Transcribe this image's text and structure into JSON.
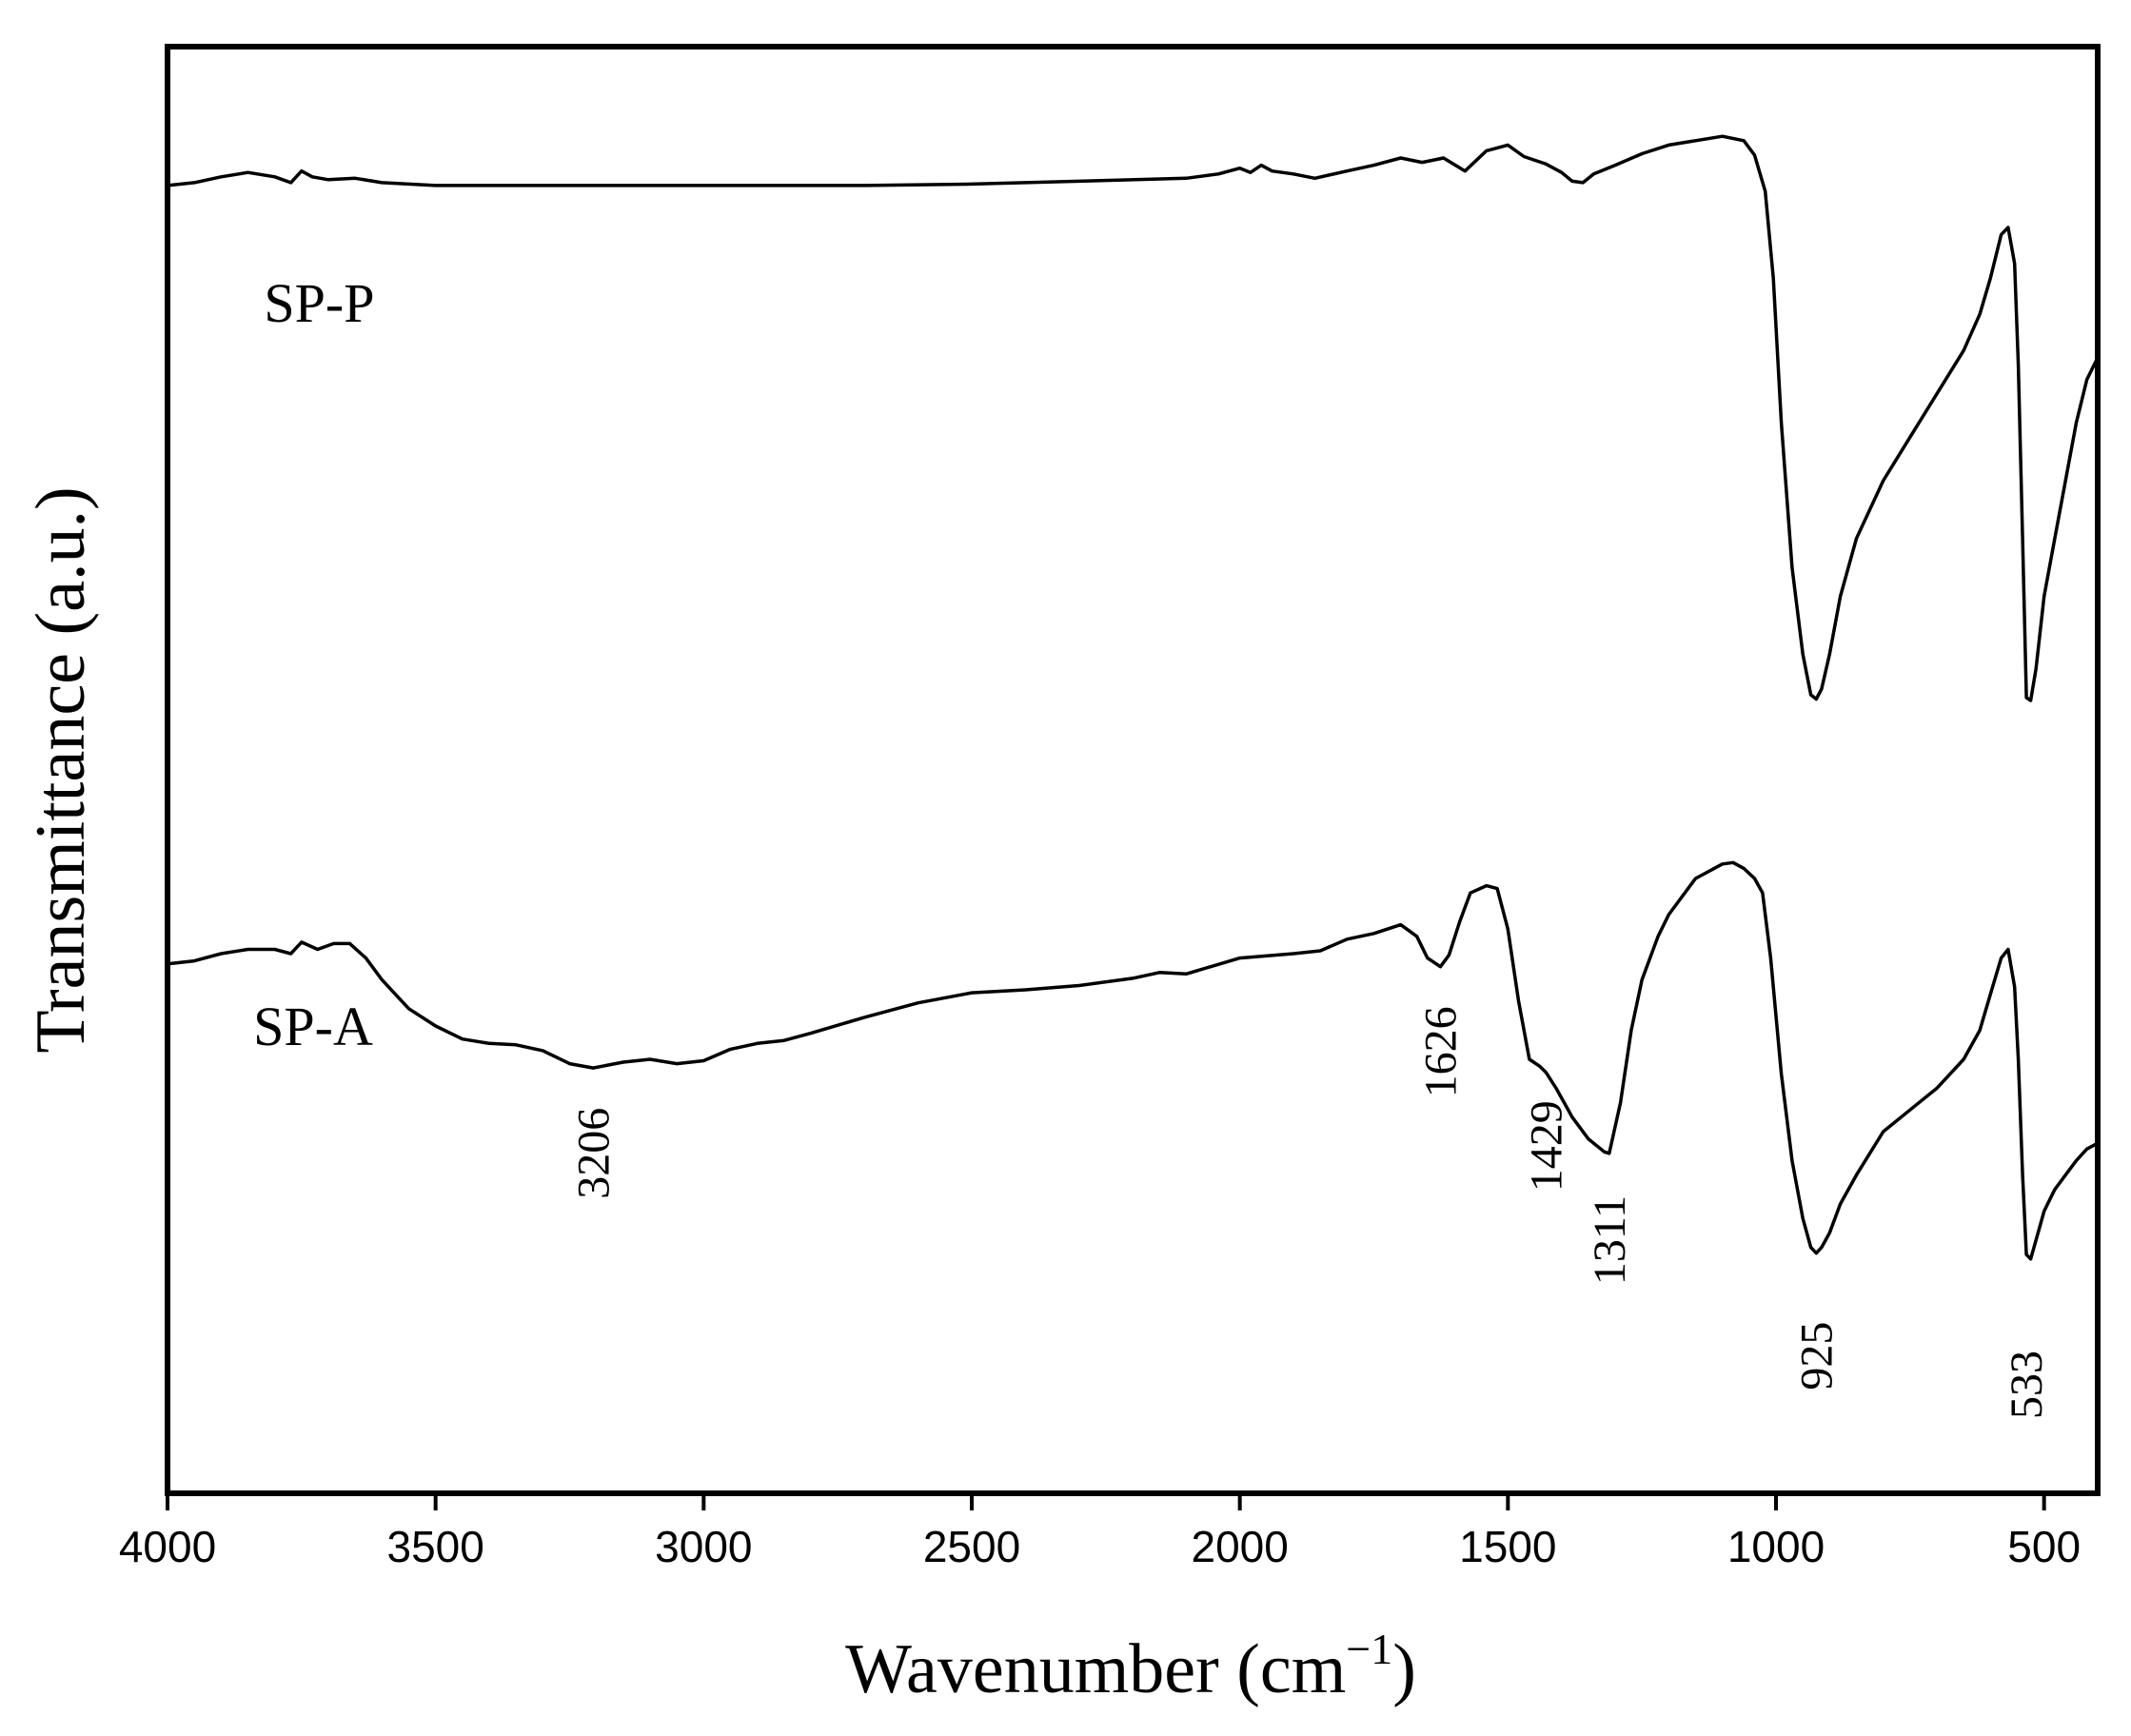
{
  "chart_data": {
    "type": "line",
    "xlabel_main": "Wavenumber (cm",
    "xlabel_sup": "−1",
    "xlabel_close": ")",
    "ylabel": "Transmittance (a.u.)",
    "xlim": [
      4000,
      400
    ],
    "ylim": [
      0,
      100
    ],
    "x_ticks": [
      {
        "value": 4000,
        "label": "4000"
      },
      {
        "value": 3500,
        "label": "3500"
      },
      {
        "value": 3000,
        "label": "3000"
      },
      {
        "value": 2500,
        "label": "2500"
      },
      {
        "value": 2000,
        "label": "2000"
      },
      {
        "value": 1500,
        "label": "1500"
      },
      {
        "value": 1000,
        "label": "1000"
      },
      {
        "value": 500,
        "label": "500"
      }
    ],
    "series": [
      {
        "name": "SP-P",
        "label_pos": {
          "x": 3820,
          "y": 81
        },
        "points": [
          [
            4000,
            90.4
          ],
          [
            3950,
            90.6
          ],
          [
            3900,
            91.0
          ],
          [
            3850,
            91.3
          ],
          [
            3800,
            91.0
          ],
          [
            3770,
            90.6
          ],
          [
            3750,
            91.4
          ],
          [
            3730,
            91.0
          ],
          [
            3700,
            90.8
          ],
          [
            3650,
            90.9
          ],
          [
            3600,
            90.6
          ],
          [
            3500,
            90.4
          ],
          [
            3300,
            90.4
          ],
          [
            3000,
            90.4
          ],
          [
            2700,
            90.4
          ],
          [
            2500,
            90.5
          ],
          [
            2300,
            90.7
          ],
          [
            2100,
            90.9
          ],
          [
            2040,
            91.2
          ],
          [
            2000,
            91.6
          ],
          [
            1980,
            91.3
          ],
          [
            1960,
            91.8
          ],
          [
            1940,
            91.4
          ],
          [
            1900,
            91.2
          ],
          [
            1860,
            90.9
          ],
          [
            1800,
            91.4
          ],
          [
            1750,
            91.8
          ],
          [
            1700,
            92.3
          ],
          [
            1660,
            92.0
          ],
          [
            1620,
            92.3
          ],
          [
            1580,
            91.4
          ],
          [
            1540,
            92.8
          ],
          [
            1500,
            93.2
          ],
          [
            1470,
            92.4
          ],
          [
            1430,
            91.9
          ],
          [
            1400,
            91.3
          ],
          [
            1380,
            90.7
          ],
          [
            1360,
            90.6
          ],
          [
            1340,
            91.2
          ],
          [
            1300,
            91.8
          ],
          [
            1250,
            92.6
          ],
          [
            1200,
            93.2
          ],
          [
            1150,
            93.5
          ],
          [
            1100,
            93.8
          ],
          [
            1060,
            93.5
          ],
          [
            1040,
            92.5
          ],
          [
            1020,
            90.0
          ],
          [
            1005,
            84.0
          ],
          [
            990,
            74.0
          ],
          [
            970,
            64.0
          ],
          [
            950,
            58.0
          ],
          [
            935,
            55.2
          ],
          [
            925,
            54.9
          ],
          [
            915,
            55.6
          ],
          [
            900,
            58.0
          ],
          [
            880,
            62.0
          ],
          [
            850,
            66.0
          ],
          [
            800,
            70.0
          ],
          [
            750,
            73.0
          ],
          [
            700,
            76.0
          ],
          [
            650,
            79.0
          ],
          [
            620,
            81.5
          ],
          [
            600,
            84.0
          ],
          [
            580,
            87.0
          ],
          [
            567,
            87.5
          ],
          [
            555,
            85.0
          ],
          [
            548,
            78.0
          ],
          [
            540,
            66.0
          ],
          [
            533,
            55.0
          ],
          [
            525,
            54.8
          ],
          [
            515,
            57.0
          ],
          [
            500,
            62.0
          ],
          [
            480,
            66.0
          ],
          [
            460,
            70.0
          ],
          [
            440,
            74.0
          ],
          [
            420,
            77.0
          ],
          [
            400,
            78.5
          ]
        ]
      },
      {
        "name": "SP-A",
        "label_pos": {
          "x": 3840,
          "y": 31
        },
        "points": [
          [
            4000,
            36.6
          ],
          [
            3950,
            36.8
          ],
          [
            3900,
            37.3
          ],
          [
            3850,
            37.6
          ],
          [
            3800,
            37.6
          ],
          [
            3770,
            37.3
          ],
          [
            3750,
            38.1
          ],
          [
            3720,
            37.6
          ],
          [
            3690,
            38.0
          ],
          [
            3660,
            38.0
          ],
          [
            3630,
            37.0
          ],
          [
            3600,
            35.5
          ],
          [
            3550,
            33.5
          ],
          [
            3500,
            32.3
          ],
          [
            3450,
            31.4
          ],
          [
            3400,
            31.1
          ],
          [
            3350,
            31.0
          ],
          [
            3300,
            30.6
          ],
          [
            3250,
            29.7
          ],
          [
            3206,
            29.4
          ],
          [
            3150,
            29.8
          ],
          [
            3100,
            30.0
          ],
          [
            3050,
            29.7
          ],
          [
            3000,
            29.9
          ],
          [
            2950,
            30.7
          ],
          [
            2900,
            31.1
          ],
          [
            2850,
            31.3
          ],
          [
            2800,
            31.8
          ],
          [
            2700,
            32.9
          ],
          [
            2600,
            33.9
          ],
          [
            2500,
            34.6
          ],
          [
            2400,
            34.8
          ],
          [
            2300,
            35.1
          ],
          [
            2200,
            35.6
          ],
          [
            2150,
            36.0
          ],
          [
            2100,
            35.9
          ],
          [
            2000,
            37.0
          ],
          [
            1900,
            37.3
          ],
          [
            1850,
            37.5
          ],
          [
            1800,
            38.3
          ],
          [
            1750,
            38.7
          ],
          [
            1700,
            39.3
          ],
          [
            1670,
            38.5
          ],
          [
            1650,
            37.0
          ],
          [
            1626,
            36.4
          ],
          [
            1610,
            37.2
          ],
          [
            1590,
            39.5
          ],
          [
            1570,
            41.5
          ],
          [
            1540,
            42.0
          ],
          [
            1520,
            41.8
          ],
          [
            1500,
            39.0
          ],
          [
            1480,
            34.0
          ],
          [
            1460,
            30.0
          ],
          [
            1440,
            29.5
          ],
          [
            1429,
            29.1
          ],
          [
            1410,
            28.0
          ],
          [
            1380,
            26.0
          ],
          [
            1350,
            24.5
          ],
          [
            1320,
            23.6
          ],
          [
            1311,
            23.5
          ],
          [
            1290,
            27.0
          ],
          [
            1270,
            32.0
          ],
          [
            1250,
            35.5
          ],
          [
            1220,
            38.5
          ],
          [
            1200,
            40.0
          ],
          [
            1150,
            42.5
          ],
          [
            1100,
            43.5
          ],
          [
            1080,
            43.6
          ],
          [
            1060,
            43.2
          ],
          [
            1040,
            42.5
          ],
          [
            1025,
            41.5
          ],
          [
            1010,
            37.0
          ],
          [
            990,
            29.0
          ],
          [
            970,
            23.0
          ],
          [
            950,
            19.0
          ],
          [
            935,
            17.0
          ],
          [
            925,
            16.6
          ],
          [
            915,
            17.0
          ],
          [
            900,
            18.0
          ],
          [
            880,
            20.0
          ],
          [
            850,
            22.0
          ],
          [
            800,
            25.0
          ],
          [
            750,
            26.5
          ],
          [
            700,
            28.0
          ],
          [
            650,
            30.0
          ],
          [
            620,
            32.0
          ],
          [
            600,
            34.5
          ],
          [
            580,
            37.0
          ],
          [
            567,
            37.6
          ],
          [
            555,
            35.0
          ],
          [
            548,
            30.0
          ],
          [
            540,
            22.0
          ],
          [
            533,
            16.5
          ],
          [
            525,
            16.2
          ],
          [
            515,
            17.5
          ],
          [
            500,
            19.5
          ],
          [
            480,
            21.0
          ],
          [
            460,
            22.0
          ],
          [
            440,
            23.0
          ],
          [
            420,
            23.8
          ],
          [
            400,
            24.2
          ]
        ]
      }
    ],
    "annotations": [
      {
        "text": "3206",
        "x": 3206,
        "y": 23.5
      },
      {
        "text": "1626",
        "x": 1626,
        "y": 30.5
      },
      {
        "text": "1429",
        "x": 1429,
        "y": 24.0
      },
      {
        "text": "1311",
        "x": 1311,
        "y": 17.5
      },
      {
        "text": "925",
        "x": 925,
        "y": 9.5
      },
      {
        "text": "533",
        "x": 533,
        "y": 7.5
      }
    ]
  }
}
